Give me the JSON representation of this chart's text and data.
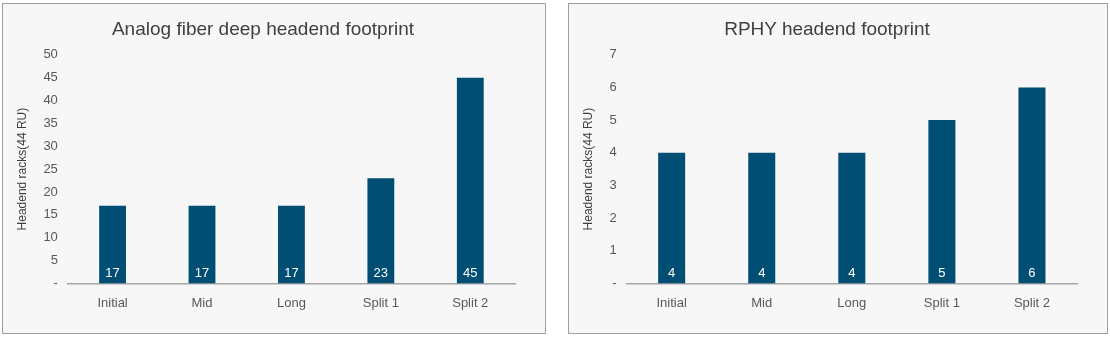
{
  "chart_data": [
    {
      "type": "bar",
      "title": "Analog fiber deep headend footprint",
      "ylabel": "Headend racks(44 RU)",
      "categories": [
        "Initial",
        "Mid",
        "Long",
        "Split 1",
        "Split 2"
      ],
      "values": [
        17,
        17,
        17,
        23,
        45
      ],
      "color": "#004e73",
      "ylim": [
        0,
        50
      ],
      "yticks": [
        {
          "value": 0,
          "label": "-"
        },
        5,
        10,
        15,
        20,
        25,
        30,
        35,
        40,
        45,
        50
      ],
      "grid": false,
      "legend": false,
      "data_labels": true
    },
    {
      "type": "bar",
      "title": "RPHY headend footprint",
      "ylabel": "Headend racks(44 RU)",
      "categories": [
        "Initial",
        "Mid",
        "Long",
        "Split 1",
        "Split 2"
      ],
      "values": [
        4,
        4,
        4,
        5,
        6
      ],
      "color": "#004e73",
      "ylim": [
        0,
        7
      ],
      "yticks": [
        {
          "value": 0,
          "label": "-"
        },
        1,
        2,
        3,
        4,
        5,
        6,
        7
      ],
      "grid": false,
      "legend": false,
      "data_labels": true
    }
  ]
}
